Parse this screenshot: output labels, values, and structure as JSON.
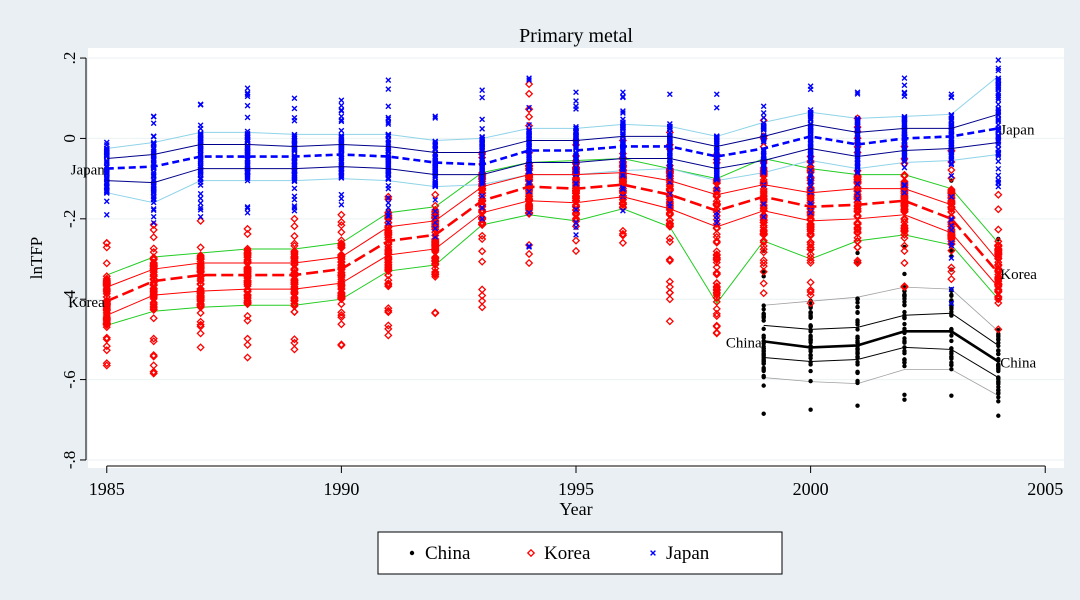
{
  "chart_data": {
    "type": "scatter",
    "title": "Primary metal",
    "xlabel": "Year",
    "ylabel": "lnTFP",
    "xlim": [
      1984.6,
      2005.4
    ],
    "ylim": [
      -0.82,
      0.225
    ],
    "xticks": [
      1985,
      1990,
      1995,
      2000,
      2005
    ],
    "yticks": [
      0.2,
      0,
      -0.2,
      -0.4,
      -0.6,
      -0.8
    ],
    "ytick_labels": [
      ".2",
      "0",
      "-.2",
      "-.4",
      "-.6",
      "-.8"
    ],
    "grid": true,
    "legend_position": "bottom",
    "series": [
      {
        "name": "China",
        "marker": "dot",
        "color": "#000000",
        "x": [
          1999,
          2000,
          2001,
          2002,
          2003,
          2004
        ],
        "median": [
          -0.505,
          -0.52,
          -0.515,
          -0.48,
          -0.48,
          -0.555
        ],
        "q25": [
          -0.545,
          -0.555,
          -0.55,
          -0.52,
          -0.525,
          -0.595
        ],
        "q75": [
          -0.465,
          -0.475,
          -0.47,
          -0.44,
          -0.435,
          -0.515
        ],
        "p10": [
          -0.595,
          -0.605,
          -0.61,
          -0.575,
          -0.575,
          -0.64
        ],
        "p90": [
          -0.415,
          -0.405,
          -0.395,
          -0.37,
          -0.375,
          -0.48
        ],
        "point_min": [
          -0.685,
          -0.675,
          -0.665,
          -0.65,
          -0.64,
          -0.69
        ],
        "point_max": [
          -0.28,
          -0.28,
          -0.285,
          -0.27,
          -0.105,
          -0.25
        ]
      },
      {
        "name": "Korea",
        "marker": "diamond",
        "color": "#ff0000",
        "x": [
          1985,
          1986,
          1987,
          1988,
          1989,
          1990,
          1991,
          1992,
          1993,
          1994,
          1995,
          1996,
          1997,
          1998,
          1999,
          2000,
          2001,
          2002,
          2003,
          2004
        ],
        "median": [
          -0.405,
          -0.355,
          -0.34,
          -0.34,
          -0.34,
          -0.325,
          -0.255,
          -0.24,
          -0.155,
          -0.12,
          -0.125,
          -0.115,
          -0.14,
          -0.18,
          -0.145,
          -0.17,
          -0.165,
          -0.155,
          -0.2,
          -0.335
        ],
        "q25": [
          -0.44,
          -0.39,
          -0.38,
          -0.375,
          -0.375,
          -0.36,
          -0.29,
          -0.275,
          -0.185,
          -0.155,
          -0.16,
          -0.145,
          -0.175,
          -0.22,
          -0.18,
          -0.205,
          -0.2,
          -0.19,
          -0.235,
          -0.37
        ],
        "q75": [
          -0.37,
          -0.325,
          -0.31,
          -0.31,
          -0.31,
          -0.295,
          -0.22,
          -0.205,
          -0.12,
          -0.09,
          -0.09,
          -0.085,
          -0.105,
          -0.14,
          -0.115,
          -0.135,
          -0.125,
          -0.125,
          -0.165,
          -0.305
        ],
        "p10": [
          -0.465,
          -0.43,
          -0.42,
          -0.415,
          -0.415,
          -0.4,
          -0.33,
          -0.315,
          -0.215,
          -0.19,
          -0.205,
          -0.175,
          -0.22,
          -0.41,
          -0.255,
          -0.3,
          -0.255,
          -0.24,
          -0.265,
          -0.4
        ],
        "p90": [
          -0.34,
          -0.295,
          -0.285,
          -0.275,
          -0.275,
          -0.26,
          -0.185,
          -0.17,
          -0.085,
          -0.06,
          -0.055,
          -0.05,
          -0.075,
          -0.1,
          -0.05,
          -0.075,
          -0.09,
          -0.09,
          -0.125,
          -0.26
        ],
        "point_min": [
          -0.565,
          -0.585,
          -0.52,
          -0.545,
          -0.525,
          -0.515,
          -0.49,
          -0.435,
          -0.42,
          -0.31,
          -0.28,
          -0.26,
          -0.455,
          -0.485,
          -0.385,
          -0.41,
          -0.31,
          -0.37,
          -0.35,
          -0.475
        ],
        "point_max": [
          -0.26,
          -0.215,
          -0.205,
          -0.225,
          -0.2,
          -0.19,
          -0.145,
          -0.14,
          -0.035,
          0.135,
          -0.005,
          -0.005,
          0.015,
          -0.04,
          0.045,
          -0.045,
          0.05,
          -0.02,
          -0.03,
          -0.14
        ]
      },
      {
        "name": "Japan",
        "marker": "x",
        "color": "#0000ff",
        "x": [
          1985,
          1986,
          1987,
          1988,
          1989,
          1990,
          1991,
          1992,
          1993,
          1994,
          1995,
          1996,
          1997,
          1998,
          1999,
          2000,
          2001,
          2002,
          2003,
          2004
        ],
        "median": [
          -0.075,
          -0.07,
          -0.045,
          -0.045,
          -0.045,
          -0.04,
          -0.045,
          -0.06,
          -0.065,
          -0.03,
          -0.03,
          -0.02,
          -0.02,
          -0.045,
          -0.025,
          0.005,
          -0.015,
          0.0,
          0.005,
          0.025
        ],
        "q25": [
          -0.105,
          -0.11,
          -0.075,
          -0.075,
          -0.075,
          -0.07,
          -0.075,
          -0.09,
          -0.09,
          -0.06,
          -0.06,
          -0.05,
          -0.05,
          -0.075,
          -0.055,
          -0.025,
          -0.045,
          -0.03,
          -0.025,
          -0.01
        ],
        "q75": [
          -0.05,
          -0.04,
          -0.015,
          -0.015,
          -0.02,
          -0.015,
          -0.02,
          -0.035,
          -0.035,
          -0.005,
          -0.005,
          0.005,
          0.005,
          -0.02,
          0.005,
          0.035,
          0.015,
          0.025,
          0.025,
          0.06
        ],
        "p10": [
          -0.135,
          -0.16,
          -0.105,
          -0.105,
          -0.105,
          -0.1,
          -0.105,
          -0.12,
          -0.115,
          -0.09,
          -0.09,
          -0.08,
          -0.075,
          -0.105,
          -0.085,
          -0.055,
          -0.075,
          -0.06,
          -0.055,
          -0.04
        ],
        "p90": [
          -0.025,
          -0.01,
          0.015,
          0.015,
          0.01,
          0.01,
          0.01,
          -0.005,
          0.0,
          0.025,
          0.025,
          0.035,
          0.03,
          0.005,
          0.04,
          0.065,
          0.05,
          0.055,
          0.06,
          0.155
        ],
        "point_min": [
          -0.19,
          -0.21,
          -0.195,
          -0.185,
          -0.18,
          -0.165,
          -0.21,
          -0.245,
          -0.2,
          -0.27,
          -0.24,
          -0.18,
          -0.17,
          -0.21,
          -0.195,
          -0.185,
          -0.15,
          -0.135,
          -0.41,
          -0.12
        ],
        "point_max": [
          -0.01,
          0.055,
          0.085,
          0.125,
          0.1,
          0.095,
          0.145,
          0.055,
          0.12,
          0.15,
          0.115,
          0.115,
          0.11,
          0.11,
          0.08,
          0.13,
          0.115,
          0.15,
          0.11,
          0.195
        ]
      }
    ],
    "annotations": [
      {
        "text": "Japan",
        "x": 1985,
        "y": -0.075,
        "side": "left"
      },
      {
        "text": "Japan",
        "x": 2004,
        "y": 0.025,
        "side": "right"
      },
      {
        "text": "Korea",
        "x": 1985,
        "y": -0.405,
        "side": "left"
      },
      {
        "text": "Korea",
        "x": 2004,
        "y": -0.335,
        "side": "right"
      },
      {
        "text": "China",
        "x": 1999,
        "y": -0.505,
        "side": "left"
      },
      {
        "text": "China",
        "x": 2004,
        "y": -0.555,
        "side": "right"
      }
    ]
  }
}
